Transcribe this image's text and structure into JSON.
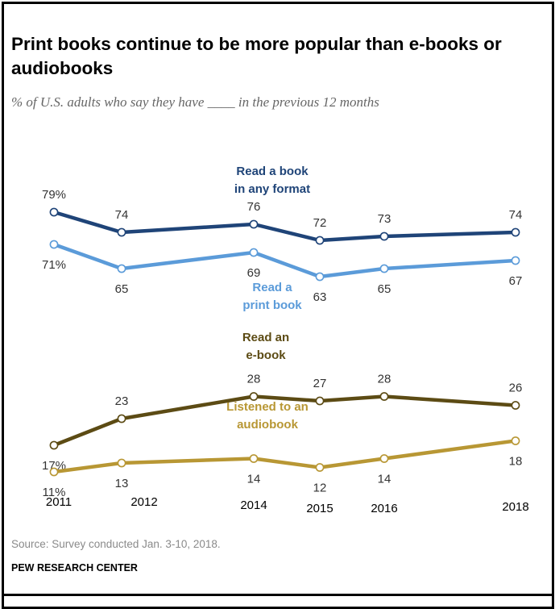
{
  "header": {
    "title": "Print books continue to be more popular than e-books or audiobooks",
    "subtitle": "% of U.S. adults who say they have ____ in the previous 12 months"
  },
  "footer": {
    "source": "Source: Survey conducted Jan. 3-10, 2018.",
    "credit": "PEW RESEARCH CENTER"
  },
  "chart_data": {
    "type": "line",
    "x": [
      2011,
      2012,
      2014,
      2015,
      2016,
      2018
    ],
    "x_tick_labels": [
      "2011",
      "2012",
      "2014",
      "2015",
      "2016",
      "2018"
    ],
    "ylabel": "",
    "xlabel": "",
    "grid": false,
    "legend": "direct labels on lines",
    "series": [
      {
        "name": "Read a book in any format",
        "color": "#1f4478",
        "values": [
          79,
          74,
          76,
          72,
          73,
          74
        ],
        "value_labels": [
          "79%",
          "74",
          "76",
          "72",
          "73",
          "74"
        ]
      },
      {
        "name": "Read a print book",
        "color": "#5b9bd9",
        "values": [
          71,
          65,
          69,
          63,
          65,
          67
        ],
        "value_labels": [
          "71%",
          "65",
          "69",
          "63",
          "65",
          "67"
        ]
      },
      {
        "name": "Read an e-book",
        "color": "#5c4b14",
        "values": [
          17,
          23,
          28,
          27,
          28,
          26
        ],
        "value_labels": [
          "17%",
          "23",
          "28",
          "27",
          "28",
          "26"
        ]
      },
      {
        "name": "Listened to an audiobook",
        "color": "#b89734",
        "values": [
          11,
          13,
          14,
          12,
          14,
          18
        ],
        "value_labels": [
          "11%",
          "13",
          "14",
          "12",
          "14",
          "18"
        ]
      }
    ]
  }
}
